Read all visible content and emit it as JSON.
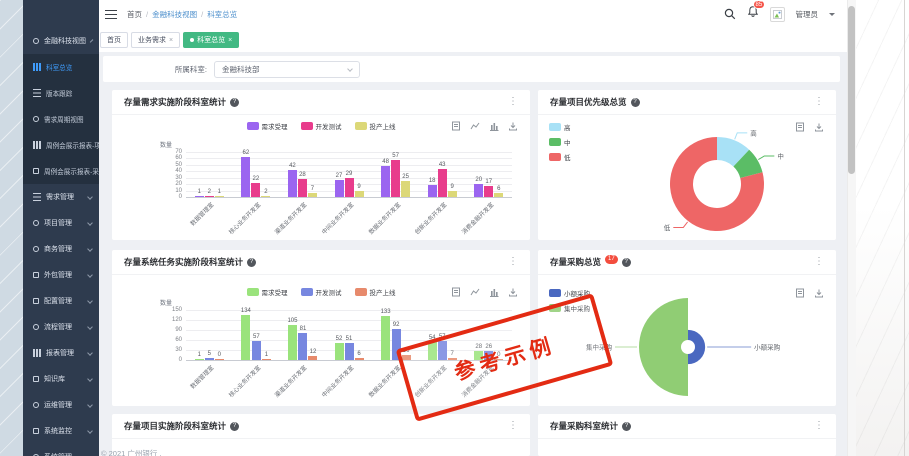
{
  "topbar": {
    "breadcrumb": [
      "首页",
      "金融科技视图",
      "科室总览"
    ],
    "breadcrumb_separator": "/",
    "bell_badge": "85",
    "username": "管理员"
  },
  "tabs": [
    {
      "label": "首页",
      "closable": false,
      "active": false
    },
    {
      "label": "业务需求",
      "closable": true,
      "active": false
    },
    {
      "label": "科室总览",
      "closable": true,
      "active": true
    }
  ],
  "filter": {
    "label": "所属科室:",
    "value": "金融科技部"
  },
  "sidebar": {
    "items": [
      {
        "label": "金融科技视图",
        "icon": "globe-icon",
        "expanded": true,
        "children": [
          {
            "label": "科室总览",
            "icon": "bar-chart-icon",
            "active": true
          },
          {
            "label": "版本跟踪",
            "icon": "list-icon"
          },
          {
            "label": "需求周期视图",
            "icon": "clock-icon"
          },
          {
            "label": "周例会展示报表-项目",
            "icon": "bar-chart-icon"
          },
          {
            "label": "周例会展示报表-采购",
            "icon": "briefcase-icon"
          }
        ]
      },
      {
        "label": "需求管理",
        "icon": "list-icon"
      },
      {
        "label": "项目管理",
        "icon": "flow-icon"
      },
      {
        "label": "商务管理",
        "icon": "globe-icon"
      },
      {
        "label": "外包管理",
        "icon": "chat-icon"
      },
      {
        "label": "配置管理",
        "icon": "edit-icon"
      },
      {
        "label": "流程管理",
        "icon": "clock-icon"
      },
      {
        "label": "报表管理",
        "icon": "bar-chart-icon"
      },
      {
        "label": "知识库",
        "icon": "book-icon"
      },
      {
        "label": "运维管理",
        "icon": "wrench-icon"
      },
      {
        "label": "系统监控",
        "icon": "monitor-icon"
      },
      {
        "label": "系统管理",
        "icon": "gear-icon"
      }
    ]
  },
  "icons": {
    "close_glyph": "×",
    "more_glyph": "⋮",
    "help_glyph": "?"
  },
  "accent_colors": {
    "active_tab_green": "#42b983",
    "link_blue": "#4c8fcc",
    "badge_red": "#f34d3e",
    "sidebar_active_blue": "#3f9bfa"
  },
  "stamp": {
    "text": "参考示例"
  },
  "footer": {
    "text": "© 2021 广州银行 ."
  },
  "chart_data": [
    {
      "type": "bar",
      "title": "存量需求实施阶段科室统计",
      "ylabel": "数量",
      "ylim": [
        0,
        70
      ],
      "ytick_step": 10,
      "grid": true,
      "legend_position": "top",
      "categories": [
        "数据管理室",
        "核心业务开发室",
        "渠道业务开发室",
        "中间业务开发室",
        "数据业务开发室",
        "创新业务开发室",
        "消费金融开发室"
      ],
      "series": [
        {
          "name": "需求受理",
          "color": "#9b65f0",
          "values": [
            1,
            62,
            42,
            27,
            48,
            18,
            20
          ]
        },
        {
          "name": "开发测试",
          "color": "#e83c8c",
          "values": [
            2,
            22,
            28,
            29,
            57,
            43,
            17
          ]
        },
        {
          "name": "投产上线",
          "color": "#dcd878",
          "values": [
            1,
            2,
            7,
            9,
            25,
            9,
            6
          ]
        }
      ]
    },
    {
      "type": "pie",
      "title": "存量项目优先级总览",
      "donut": true,
      "legend_position": "left",
      "units": "percent-estimated",
      "slices": [
        {
          "name": "高",
          "color": "#a8e1f6",
          "value": 12
        },
        {
          "name": "中",
          "color": "#5bbd66",
          "value": 9
        },
        {
          "name": "低",
          "color": "#ee6666",
          "value": 79
        }
      ]
    },
    {
      "type": "bar",
      "title": "存量系统任务实施阶段科室统计",
      "ylabel": "数量",
      "ylim": [
        0,
        150
      ],
      "ytick_step": 30,
      "grid": true,
      "legend_position": "top",
      "categories": [
        "数据管理室",
        "核心业务开发室",
        "渠道业务开发室",
        "中间业务开发室",
        "数据业务开发室",
        "创新业务开发室",
        "消费金融开发室"
      ],
      "series": [
        {
          "name": "需求受理",
          "color": "#9ae37c",
          "values": [
            1,
            134,
            105,
            52,
            133,
            54,
            28
          ]
        },
        {
          "name": "开发测试",
          "color": "#7787e0",
          "values": [
            5,
            57,
            81,
            51,
            92,
            57,
            26
          ]
        },
        {
          "name": "投产上线",
          "color": "#e78a6c",
          "values": [
            0,
            1,
            12,
            6,
            16,
            7,
            0
          ]
        }
      ]
    },
    {
      "type": "rose",
      "title": "存量采购总览",
      "badge": "17",
      "legend_position": "left",
      "slices": [
        {
          "name": "小额采购",
          "color": "#4a68c0",
          "radius_frac": 0.35,
          "side": "right"
        },
        {
          "name": "集中采购",
          "color": "#90cd74",
          "radius_frac": 1.0,
          "side": "left"
        }
      ]
    },
    {
      "type": "bar",
      "title": "存量项目实施阶段科室统计"
    },
    {
      "type": "bar",
      "title": "存量采购科室统计"
    }
  ]
}
